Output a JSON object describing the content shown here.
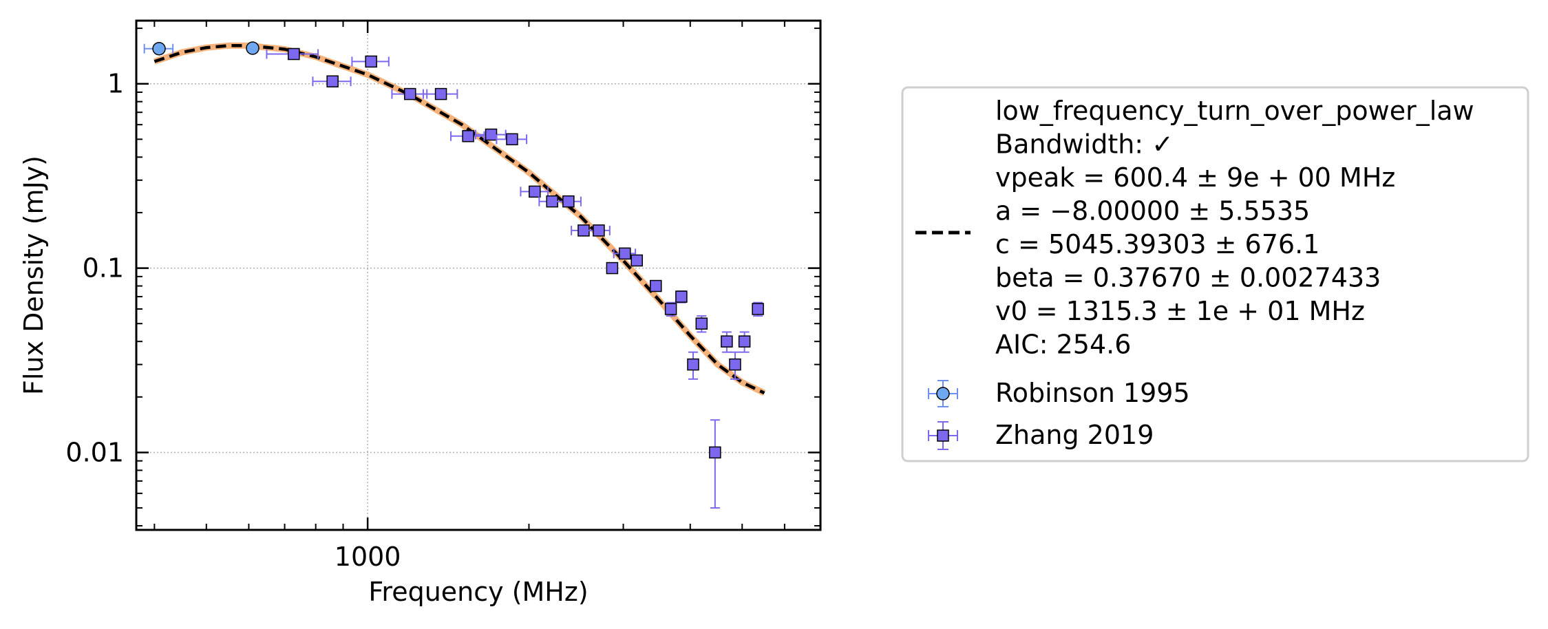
{
  "chart_data": {
    "type": "scatter",
    "title": "",
    "xlabel": "Frequency (MHz)",
    "ylabel": "Flux Density (mJy)",
    "xscale": "log",
    "yscale": "log",
    "xlim": [
      370,
      7000
    ],
    "ylim": [
      0.0038,
      2.2
    ],
    "x_ticks": [
      {
        "value": 1000,
        "label": "1000"
      }
    ],
    "y_ticks": [
      {
        "value": 1,
        "label": "1"
      },
      {
        "value": 0.1,
        "label": "0.1"
      },
      {
        "value": 0.01,
        "label": "0.01"
      }
    ],
    "grid": true,
    "legend_position": "right",
    "fit": {
      "model": "low_frequency_turn_over_power_law",
      "color": "#000000",
      "style": "dashed",
      "uncertainty_color": "#f5b27a",
      "legend_lines": [
        "low_frequency_turn_over_power_law",
        "Bandwidth: ✓",
        "vpeak = 600.4 ± 9e + 00 MHz",
        "a = −8.00000 ± 5.5535",
        "c = 5045.39303 ± 676.1",
        "beta = 0.37670 ± 0.0027433",
        "v0 = 1315.3 ± 1e + 01 MHz",
        "AIC: 254.6"
      ],
      "curve": [
        [
          400,
          1.32
        ],
        [
          450,
          1.48
        ],
        [
          500,
          1.57
        ],
        [
          550,
          1.61
        ],
        [
          600,
          1.61
        ],
        [
          700,
          1.54
        ],
        [
          800,
          1.4
        ],
        [
          1000,
          1.12
        ],
        [
          1200,
          0.87
        ],
        [
          1500,
          0.6
        ],
        [
          2000,
          0.33
        ],
        [
          2500,
          0.19
        ],
        [
          3000,
          0.11
        ],
        [
          3500,
          0.067
        ],
        [
          4000,
          0.043
        ],
        [
          4500,
          0.03
        ],
        [
          5000,
          0.024
        ],
        [
          5500,
          0.021
        ]
      ]
    },
    "series": [
      {
        "name": "Robinson 1995",
        "marker": "circle",
        "color": "#6fa8f0",
        "errbar_color": "#6f8ff0",
        "points": [
          {
            "x": 408,
            "y": 1.55,
            "xerr": 25,
            "yerr": 0
          },
          {
            "x": 610,
            "y": 1.56,
            "xerr": 0,
            "yerr": 0
          }
        ]
      },
      {
        "name": "Zhang 2019",
        "marker": "square",
        "color": "#7b68ee",
        "errbar_color": "#7b68ee",
        "points": [
          {
            "x": 728,
            "y": 1.45,
            "xerr": 80,
            "yerr": 0
          },
          {
            "x": 860,
            "y": 1.03,
            "xerr": 70,
            "yerr": 0
          },
          {
            "x": 1015,
            "y": 1.32,
            "xerr": 80,
            "yerr": 0
          },
          {
            "x": 1200,
            "y": 0.88,
            "xerr": 90,
            "yerr": 0
          },
          {
            "x": 1370,
            "y": 0.88,
            "xerr": 100,
            "yerr": 0
          },
          {
            "x": 1540,
            "y": 0.52,
            "xerr": 110,
            "yerr": 0
          },
          {
            "x": 1700,
            "y": 0.53,
            "xerr": 110,
            "yerr": 0
          },
          {
            "x": 1860,
            "y": 0.5,
            "xerr": 120,
            "yerr": 0
          },
          {
            "x": 2050,
            "y": 0.26,
            "xerr": 120,
            "yerr": 0
          },
          {
            "x": 2210,
            "y": 0.23,
            "xerr": 120,
            "yerr": 0
          },
          {
            "x": 2370,
            "y": 0.23,
            "xerr": 130,
            "yerr": 0
          },
          {
            "x": 2530,
            "y": 0.16,
            "xerr": 130,
            "yerr": 0
          },
          {
            "x": 2700,
            "y": 0.16,
            "xerr": 130,
            "yerr": 0
          },
          {
            "x": 2860,
            "y": 0.1,
            "xerr": 0,
            "yerr": 0
          },
          {
            "x": 3020,
            "y": 0.12,
            "xerr": 140,
            "yerr": 0
          },
          {
            "x": 3180,
            "y": 0.11,
            "xerr": 0,
            "yerr": 0
          },
          {
            "x": 3450,
            "y": 0.08,
            "xerr": 0,
            "yerr": 0
          },
          {
            "x": 3680,
            "y": 0.06,
            "xerr": 0,
            "yerr": 0.005
          },
          {
            "x": 3850,
            "y": 0.07,
            "xerr": 0,
            "yerr": 0.005
          },
          {
            "x": 4050,
            "y": 0.03,
            "xerr": 0,
            "yerr": 0.005
          },
          {
            "x": 4200,
            "y": 0.05,
            "xerr": 0,
            "yerr": 0.005
          },
          {
            "x": 4450,
            "y": 0.01,
            "xerr": 0,
            "yerr": 0.005
          },
          {
            "x": 4680,
            "y": 0.04,
            "xerr": 0,
            "yerr": 0.005
          },
          {
            "x": 4850,
            "y": 0.03,
            "xerr": 0,
            "yerr": 0.005
          },
          {
            "x": 5050,
            "y": 0.04,
            "xerr": 0,
            "yerr": 0.005
          },
          {
            "x": 5350,
            "y": 0.06,
            "xerr": 0,
            "yerr": 0.005
          }
        ]
      }
    ]
  }
}
